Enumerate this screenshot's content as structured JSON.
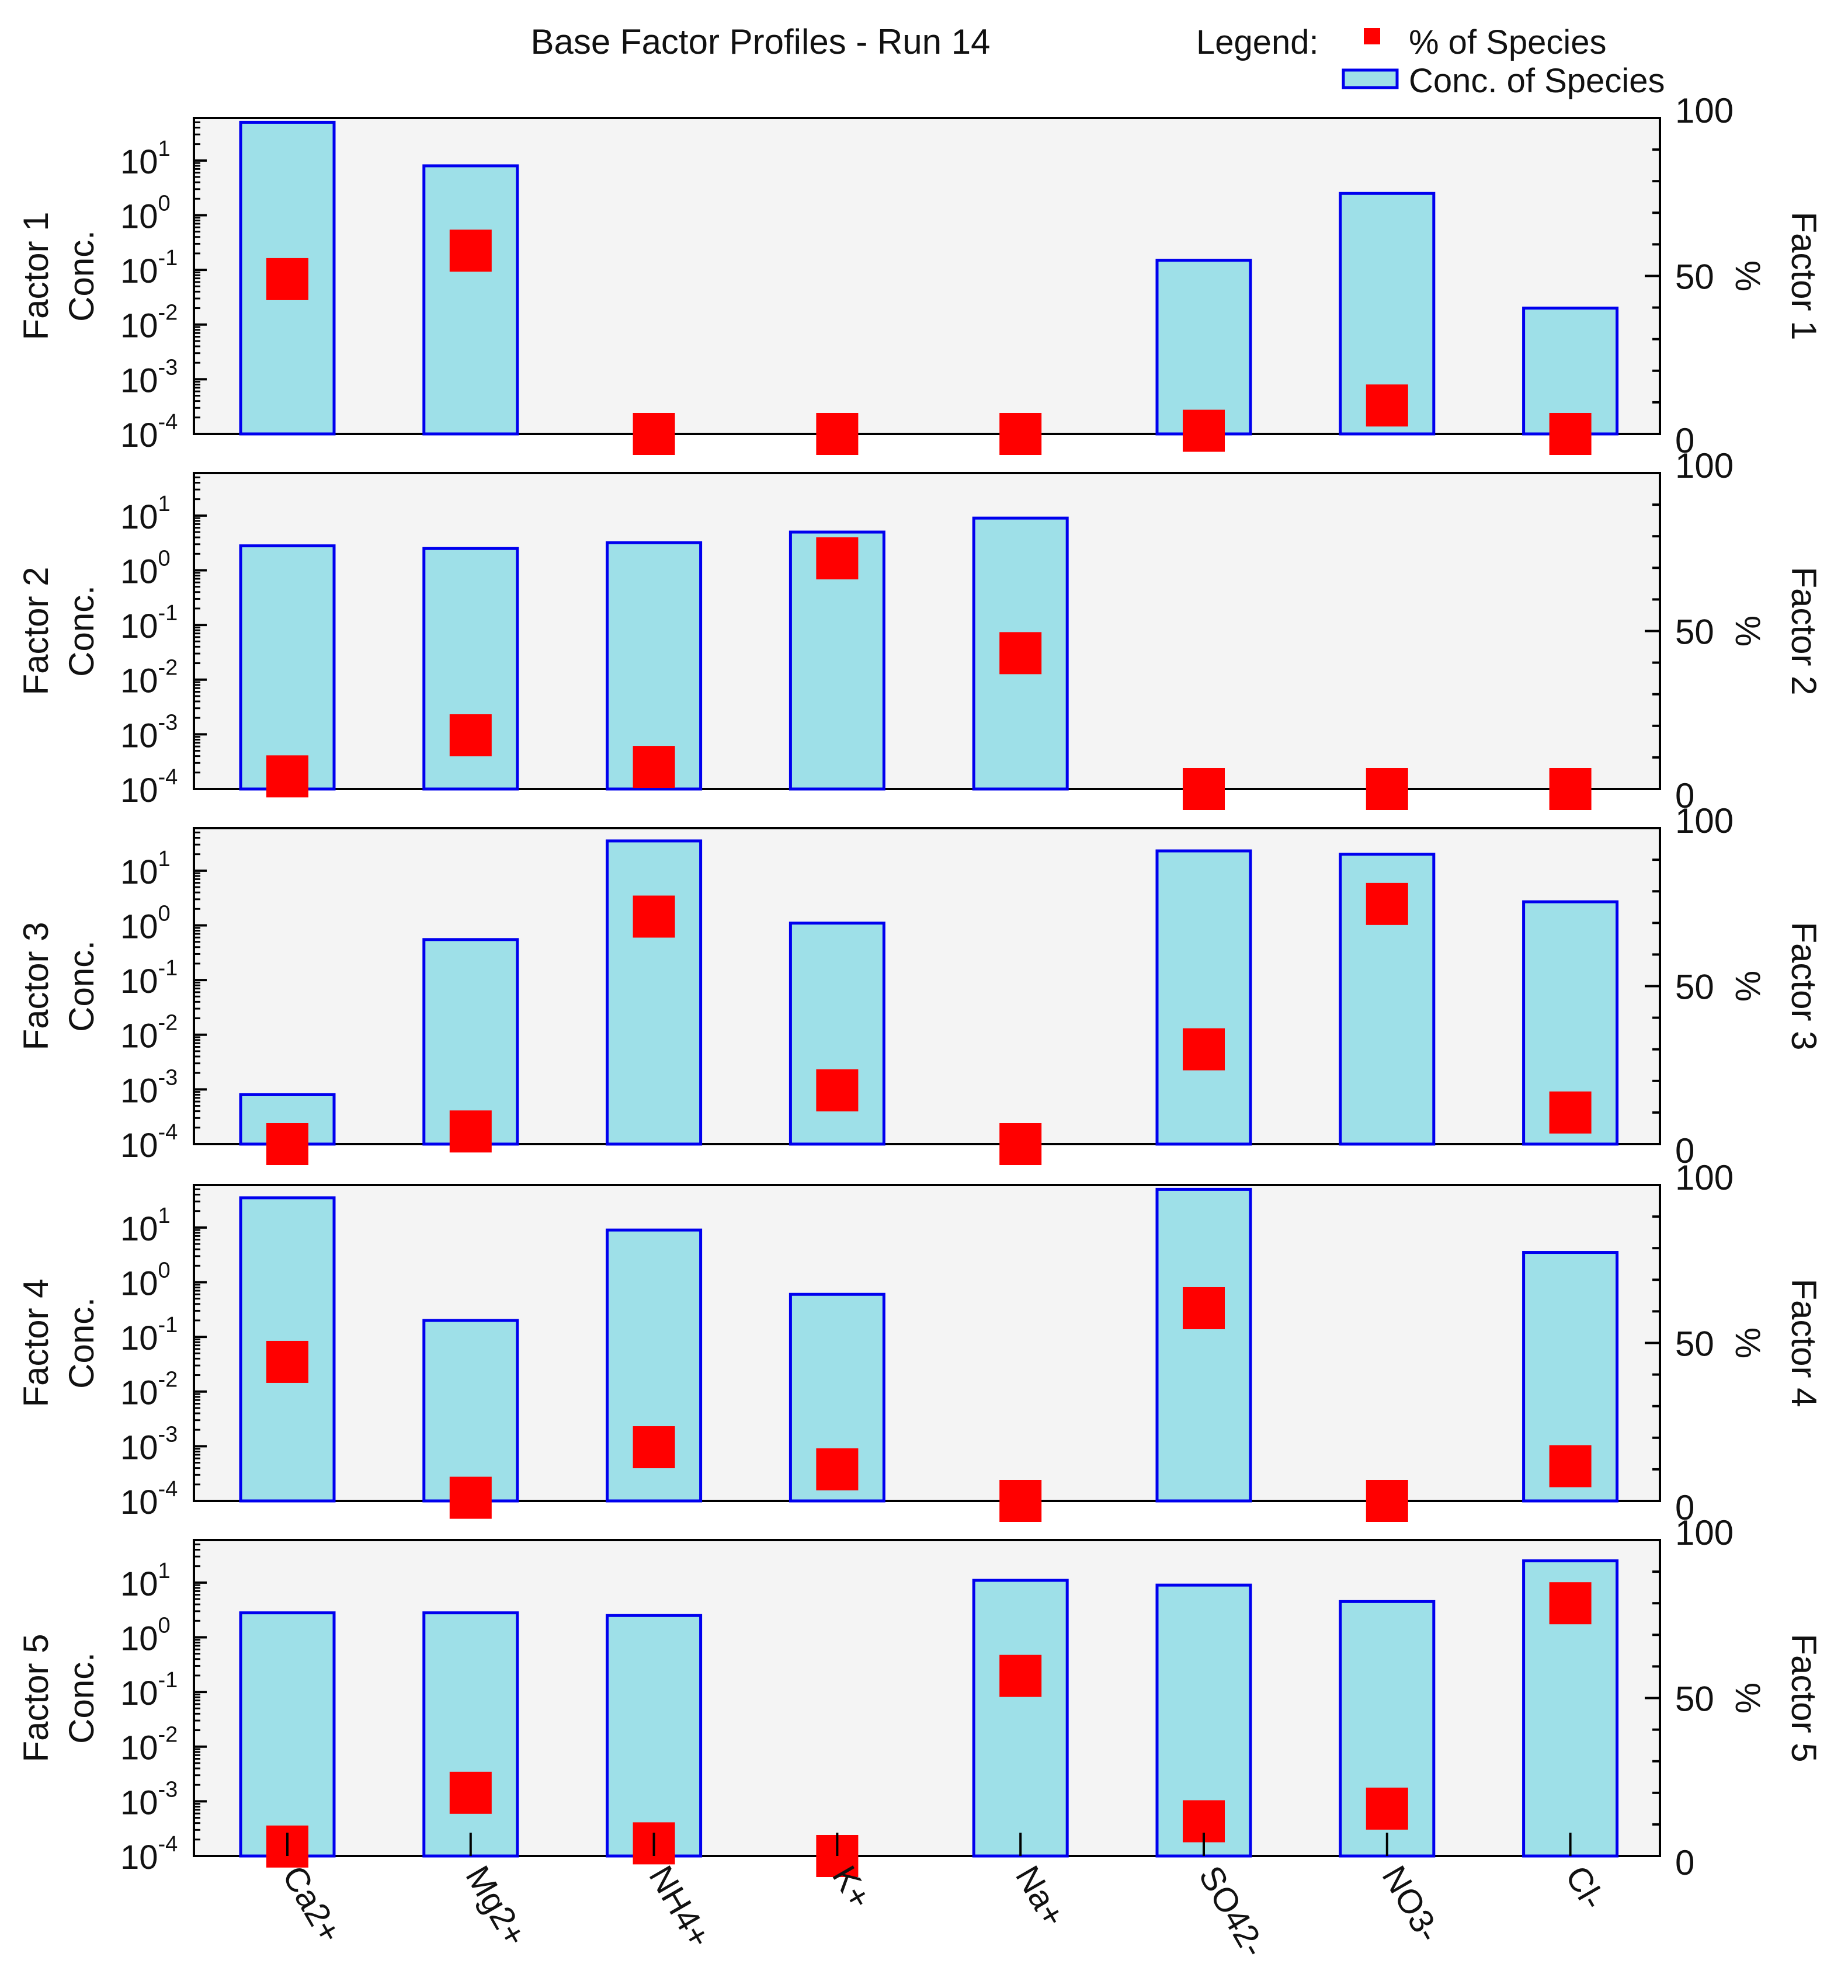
{
  "chart_data": {
    "type": "bar",
    "title": "Base Factor Profiles - Run 14",
    "legend": {
      "label": "Legend:",
      "items": [
        {
          "name": "% of Species",
          "marker": "red-square"
        },
        {
          "name": "Conc. of Species",
          "marker": "cyan-bar"
        }
      ],
      "placement": "top-right"
    },
    "categories": [
      "Ca2+",
      "Mg2+",
      "NH4+",
      "K+",
      "Na+",
      "SO42-",
      "NO3-",
      "Cl-"
    ],
    "y_left": {
      "label": "Conc.",
      "scale": "log",
      "ylim": [
        0.0001,
        60
      ],
      "tick_base": "10",
      "tick_exponents": [
        "1",
        "0",
        "-1",
        "-2",
        "-3",
        "-4"
      ]
    },
    "y_right": {
      "label": "%",
      "ylim": [
        0,
        100
      ],
      "ticks": [
        "100",
        "50",
        "0"
      ]
    },
    "grid": false,
    "colors": {
      "bar_fill": "#9ee0e8",
      "bar_stroke": "#0000ee",
      "marker": "#ff0000",
      "panel_bg": "#f4f4f4"
    },
    "panels": [
      {
        "name": "Factor 1",
        "conc": [
          50,
          8,
          null,
          null,
          null,
          0.15,
          2.5,
          0.02
        ],
        "percent": [
          49,
          58,
          0,
          0,
          0,
          1,
          9,
          0
        ]
      },
      {
        "name": "Factor 2",
        "conc": [
          2.8,
          2.5,
          3.2,
          5,
          9,
          null,
          null,
          null
        ],
        "percent": [
          4,
          17,
          7,
          73,
          43,
          0,
          0,
          0
        ]
      },
      {
        "name": "Factor 3",
        "conc": [
          0.0008,
          0.55,
          35,
          1.1,
          null,
          23,
          20,
          2.7
        ],
        "percent": [
          0,
          4,
          72,
          17,
          0,
          30,
          76,
          10
        ]
      },
      {
        "name": "Factor 4",
        "conc": [
          35,
          0.2,
          9,
          0.6,
          null,
          50,
          null,
          3.5
        ],
        "percent": [
          44,
          1,
          17,
          10,
          0,
          61,
          0,
          11
        ]
      },
      {
        "name": "Factor 5",
        "conc": [
          2.8,
          2.8,
          2.5,
          null,
          11,
          9,
          4.5,
          25
        ],
        "percent": [
          3,
          20,
          4,
          0,
          57,
          11,
          15,
          80
        ]
      }
    ]
  }
}
